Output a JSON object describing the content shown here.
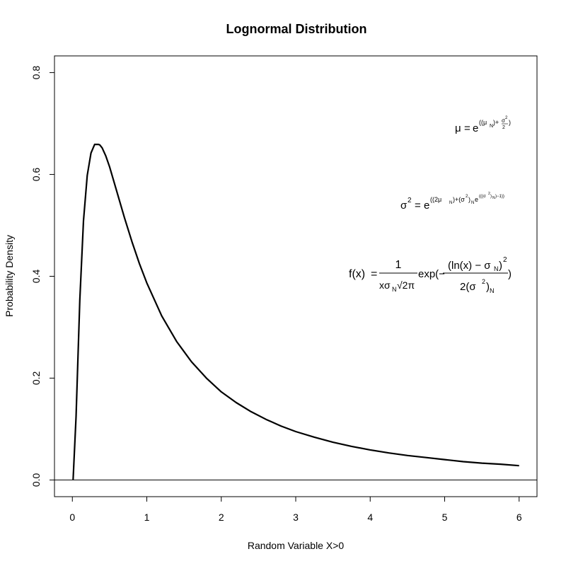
{
  "chart_data": {
    "type": "line",
    "title": "Lognormal Distribution",
    "xlabel": "Random Variable X>0",
    "ylabel": "Probability Density",
    "xlim": [
      -0.24,
      6.24
    ],
    "ylim": [
      -0.0328,
      0.8328
    ],
    "x_ticks": [
      "0",
      "1",
      "2",
      "3",
      "4",
      "5",
      "6"
    ],
    "y_ticks": [
      "0.0",
      "0.2",
      "0.4",
      "0.6",
      "0.8"
    ],
    "grid": false,
    "reference_line_y": 0,
    "series": [
      {
        "color": "#000000",
        "x": [
          0.01,
          0.05,
          0.1,
          0.15,
          0.2,
          0.25,
          0.3,
          0.35,
          0.368,
          0.4,
          0.45,
          0.5,
          0.6,
          0.7,
          0.8,
          0.9,
          1.0,
          1.2,
          1.4,
          1.6,
          1.8,
          2.0,
          2.2,
          2.4,
          2.6,
          2.8,
          3.0,
          3.25,
          3.5,
          3.75,
          4.0,
          4.25,
          4.5,
          4.75,
          5.0,
          5.25,
          5.5,
          5.75,
          6.0
        ],
        "y": [
          0.0,
          0.124,
          0.353,
          0.509,
          0.598,
          0.642,
          0.659,
          0.659,
          0.658,
          0.652,
          0.636,
          0.615,
          0.565,
          0.515,
          0.468,
          0.425,
          0.387,
          0.322,
          0.272,
          0.232,
          0.2,
          0.173,
          0.152,
          0.134,
          0.119,
          0.106,
          0.095,
          0.084,
          0.074,
          0.066,
          0.059,
          0.053,
          0.048,
          0.044,
          0.04,
          0.036,
          0.033,
          0.031,
          0.028
        ]
      }
    ]
  },
  "annotations": {
    "mu_formula": {
      "lhs": "μ",
      "eq": "=",
      "base": "e",
      "exponent": "((μ",
      "exponent_sub": "N",
      "exponent_mid": ")+",
      "frac_num": "σ",
      "frac_num_sup": "2",
      "frac_den": "2",
      "exponent_end": ")"
    },
    "sigma_formula": {
      "lhs": "σ",
      "lhs_sup": "2",
      "eq": "=",
      "base": "e",
      "exponent_text": "((2μ",
      "exponent_sub1": "N",
      "exponent_text2": ")+(σ",
      "exponent_sup2": "2",
      "exponent_text3": ")",
      "exponent_sub3": "N",
      "exponent_text4": "e",
      "exponent_text5": "(((σ",
      "exponent_sup5": "2",
      "exponent_text6": ")",
      "exponent_sub6": "N",
      "exponent_text7": ")−1))"
    },
    "pdf_formula": {
      "lhs": "f(x)",
      "eq": "=",
      "frac1_num": "1",
      "frac1_den_a": "xσ",
      "frac1_den_sub": "N",
      "frac1_den_b": "√2π",
      "exp_text": "exp(−",
      "frac2_num_a": "(ln(x) − σ",
      "frac2_num_sub": "N",
      "frac2_num_b": ")",
      "frac2_num_sup": "2",
      "frac2_den_a": "2(σ",
      "frac2_den_sup": "2",
      "frac2_den_b": ")",
      "frac2_den_sub": "N",
      "close": ")"
    }
  }
}
